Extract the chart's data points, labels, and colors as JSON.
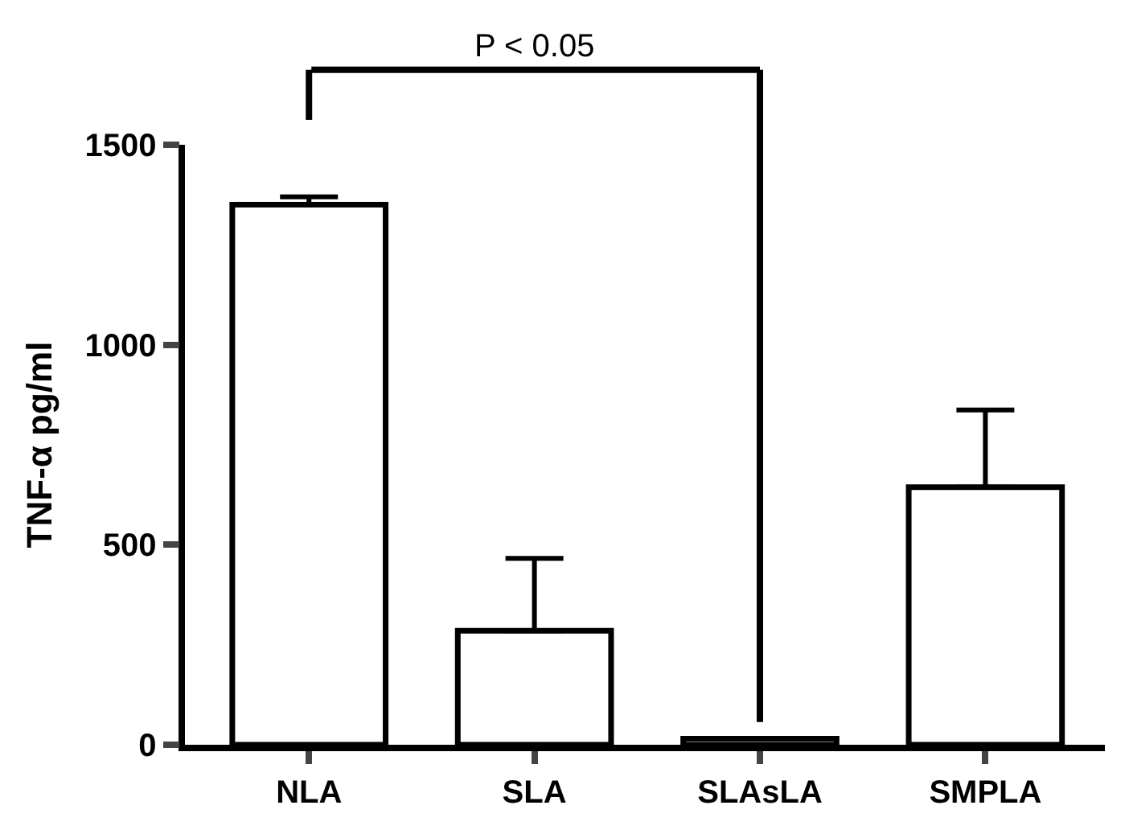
{
  "chart_data": {
    "type": "bar",
    "categories": [
      "NLA",
      "SLA",
      "SLAsLA",
      "SMPLA"
    ],
    "values": [
      1350,
      285,
      15,
      644
    ],
    "errors": [
      [
        1350,
        1370
      ],
      [
        285,
        466
      ],
      [
        15,
        15
      ],
      [
        644,
        837
      ]
    ],
    "color": "#ffffff",
    "ylabel": "TNF-α pg/ml",
    "ylim": [
      0,
      1500
    ],
    "yticks": [
      0,
      500,
      1000,
      1500
    ],
    "annotations": [
      "P < 0.05"
    ]
  }
}
